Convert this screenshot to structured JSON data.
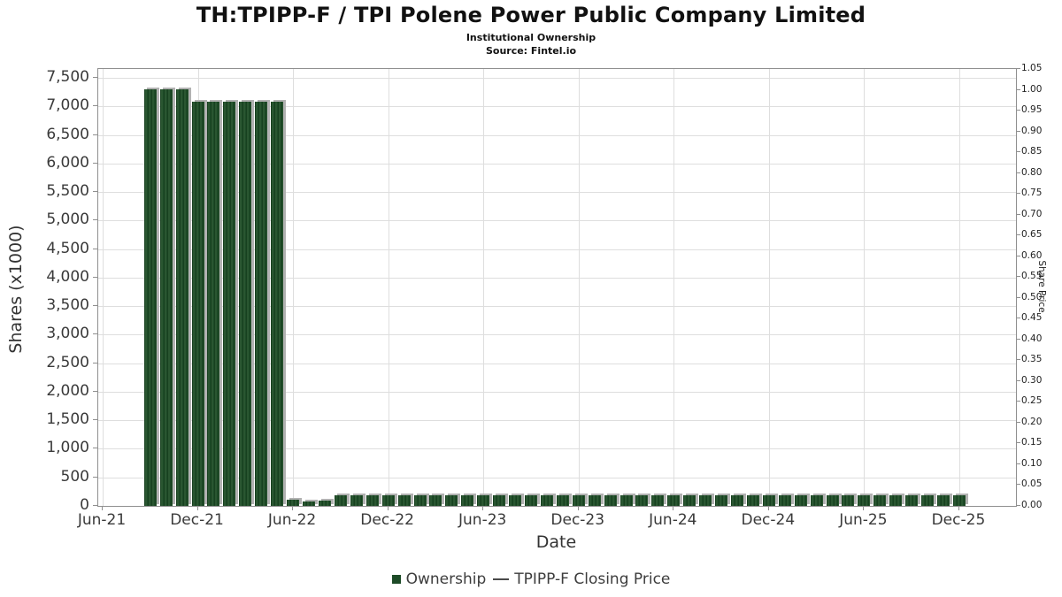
{
  "header": {
    "title": "TH:TPIPP-F / TPI Polene Power Public Company Limited",
    "subtitle": "Institutional Ownership",
    "source": "Source: Fintel.io"
  },
  "legend": {
    "ownership_label": "Ownership",
    "price_label": "TPIPP-F Closing Price"
  },
  "colors": {
    "bar_green": "#1d4b27",
    "bar_shadow": "#b2b2b2",
    "gridline": "#dedede",
    "axis_border": "#8f8f8f",
    "text": "#3a3a3a"
  },
  "chart_data": {
    "type": "bar",
    "title": "TH:TPIPP-F / TPI Polene Power Public Company Limited",
    "subtitle": "Institutional Ownership",
    "source": "Source: Fintel.io",
    "xlabel": "Date",
    "ylabel_left": "Shares (x1000)",
    "ylabel_right": "Share Price",
    "grid": true,
    "legend_position": "bottom",
    "ylim_left": [
      0,
      7655
    ],
    "ylim_right": [
      0,
      1.05
    ],
    "y_left_tick_values": [
      0,
      500,
      1000,
      1500,
      2000,
      2500,
      3000,
      3500,
      4000,
      4500,
      5000,
      5500,
      6000,
      6500,
      7000,
      7500
    ],
    "y_right_tick_labels": [
      "0.00",
      "0.05",
      "0.10",
      "0.15",
      "0.20",
      "0.25",
      "0.30",
      "0.35",
      "0.40",
      "0.45",
      "0.50",
      "0.55",
      "0.60",
      "0.65",
      "0.70",
      "0.75",
      "0.80",
      "0.85",
      "0.90",
      "0.95",
      "1.00",
      "1.05"
    ],
    "x_ticks": [
      {
        "label": "Jun-21",
        "month": 0
      },
      {
        "label": "Dec-21",
        "month": 6
      },
      {
        "label": "Jun-22",
        "month": 12
      },
      {
        "label": "Dec-22",
        "month": 18
      },
      {
        "label": "Jun-23",
        "month": 24
      },
      {
        "label": "Dec-23",
        "month": 30
      },
      {
        "label": "Jun-24",
        "month": 36
      },
      {
        "label": "Dec-24",
        "month": 42
      },
      {
        "label": "Jun-25",
        "month": 48
      },
      {
        "label": "Dec-25",
        "month": 54
      }
    ],
    "first_bar_month_offset": 3,
    "categories": [
      "Sep-21",
      "Oct-21",
      "Nov-21",
      "Dec-21",
      "Jan-22",
      "Feb-22",
      "Mar-22",
      "Apr-22",
      "May-22",
      "Jun-22",
      "Jul-22",
      "Aug-22",
      "Sep-22",
      "Oct-22",
      "Nov-22",
      "Dec-22",
      "Jan-23",
      "Feb-23",
      "Mar-23",
      "Apr-23",
      "May-23",
      "Jun-23",
      "Jul-23",
      "Aug-23",
      "Sep-23",
      "Oct-23",
      "Nov-23",
      "Dec-23",
      "Jan-24",
      "Feb-24",
      "Mar-24",
      "Apr-24",
      "May-24",
      "Jun-24",
      "Jul-24",
      "Aug-24",
      "Sep-24",
      "Oct-24",
      "Nov-24",
      "Dec-24",
      "Jan-25",
      "Feb-25",
      "Mar-25",
      "Apr-25",
      "May-25",
      "Jun-25",
      "Jul-25",
      "Aug-25",
      "Sep-25",
      "Oct-25",
      "Nov-25",
      "Dec-25"
    ],
    "series": [
      {
        "name": "Ownership",
        "units": "shares x1000",
        "color": "#1d4b27",
        "values": [
          7300,
          7300,
          7300,
          7080,
          7080,
          7080,
          7080,
          7080,
          7080,
          110,
          85,
          100,
          190,
          190,
          190,
          190,
          190,
          190,
          190,
          190,
          190,
          190,
          190,
          190,
          190,
          190,
          190,
          190,
          190,
          190,
          190,
          190,
          190,
          190,
          190,
          190,
          190,
          190,
          190,
          190,
          190,
          190,
          190,
          190,
          190,
          190,
          190,
          190,
          190,
          190,
          190,
          190
        ]
      },
      {
        "name": "TPIPP-F Closing Price",
        "units": "price",
        "color": "#4a4a4a",
        "values": []
      }
    ]
  }
}
